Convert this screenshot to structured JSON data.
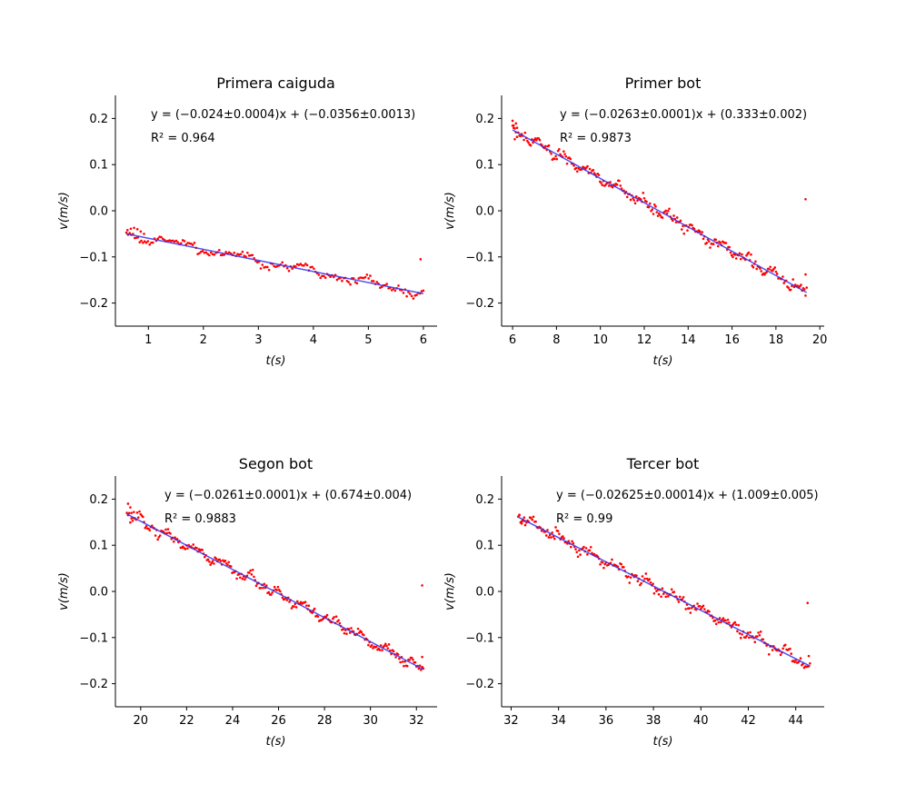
{
  "chart_data": [
    {
      "type": "scatter",
      "title": "Primera caiguda",
      "xlabel": "t(s)",
      "ylabel": "v(m/s)",
      "xlim": [
        0.4,
        6.25
      ],
      "ylim": [
        -0.25,
        0.25
      ],
      "xticks": [
        1,
        2,
        3,
        4,
        5,
        6
      ],
      "yticks": [
        -0.2,
        -0.1,
        0.0,
        0.1,
        0.2
      ],
      "grid": false,
      "fit": {
        "slope": -0.024,
        "intercept": -0.0356,
        "x_range": [
          0.6,
          6.0
        ],
        "color": "#3333ee"
      },
      "annotations": [
        "y = (−0.024±0.0004)x + (−0.0356±0.0013)",
        "R² = 0.964"
      ],
      "point_color": "#ff0000",
      "n_points": 180,
      "noise": 0.004,
      "outliers": [
        [
          5.95,
          -0.105
        ]
      ],
      "start_points": [
        [
          0.62,
          -0.042
        ],
        [
          0.68,
          -0.039
        ],
        [
          0.74,
          -0.037
        ],
        [
          0.8,
          -0.04
        ],
        [
          0.86,
          -0.045
        ],
        [
          0.92,
          -0.05
        ]
      ]
    },
    {
      "type": "scatter",
      "title": "Primer bot",
      "xlabel": "t(s)",
      "ylabel": "v(m/s)",
      "xlim": [
        5.5,
        20.2
      ],
      "ylim": [
        -0.25,
        0.25
      ],
      "xticks": [
        6,
        8,
        10,
        12,
        14,
        16,
        18,
        20
      ],
      "yticks": [
        -0.2,
        -0.1,
        0.0,
        0.1,
        0.2
      ],
      "grid": false,
      "fit": {
        "slope": -0.0263,
        "intercept": 0.333,
        "x_range": [
          6.0,
          19.4
        ],
        "color": "#3333ee"
      },
      "annotations": [
        "y = (−0.0263±0.0001)x + (0.333±0.002)",
        "R² = 0.9873"
      ],
      "point_color": "#ff0000",
      "n_points": 260,
      "noise": 0.005,
      "outliers": [
        [
          19.35,
          0.025
        ],
        [
          19.35,
          -0.138
        ]
      ],
      "start_points": [
        [
          6.0,
          0.195
        ],
        [
          6.05,
          0.185
        ],
        [
          6.1,
          0.155
        ],
        [
          6.15,
          0.17
        ],
        [
          6.2,
          0.16
        ]
      ]
    },
    {
      "type": "scatter",
      "title": "Segon bot",
      "xlabel": "t(s)",
      "ylabel": "v(m/s)",
      "xlim": [
        18.9,
        32.9
      ],
      "ylim": [
        -0.25,
        0.25
      ],
      "xticks": [
        20,
        22,
        24,
        26,
        28,
        30,
        32
      ],
      "yticks": [
        -0.2,
        -0.1,
        0.0,
        0.1,
        0.2
      ],
      "grid": false,
      "fit": {
        "slope": -0.0261,
        "intercept": 0.674,
        "x_range": [
          19.4,
          32.3
        ],
        "color": "#3333ee"
      },
      "annotations": [
        "y = (−0.0261±0.0001)x + (0.674±0.004)",
        "R² = 0.9883"
      ],
      "point_color": "#ff0000",
      "n_points": 260,
      "noise": 0.005,
      "outliers": [
        [
          32.25,
          0.013
        ],
        [
          32.25,
          -0.142
        ]
      ],
      "start_points": [
        [
          19.45,
          0.19
        ],
        [
          19.55,
          0.182
        ],
        [
          19.6,
          0.17
        ],
        [
          19.7,
          0.172
        ]
      ]
    },
    {
      "type": "scatter",
      "title": "Tercer bot",
      "xlabel": "t(s)",
      "ylabel": "v(m/s)",
      "xlim": [
        31.6,
        45.2
      ],
      "ylim": [
        -0.25,
        0.25
      ],
      "xticks": [
        32,
        34,
        36,
        38,
        40,
        42,
        44
      ],
      "yticks": [
        -0.2,
        -0.1,
        0.0,
        0.1,
        0.2
      ],
      "grid": false,
      "fit": {
        "slope": -0.02625,
        "intercept": 1.009,
        "x_range": [
          32.3,
          44.6
        ],
        "color": "#3333ee"
      },
      "annotations": [
        "y = (−0.02625±0.00014)x + (1.009±0.005)",
        "R² = 0.99"
      ],
      "point_color": "#ff0000",
      "n_points": 250,
      "noise": 0.005,
      "outliers": [
        [
          44.5,
          -0.025
        ],
        [
          44.55,
          -0.14
        ]
      ],
      "start_points": [
        [
          32.35,
          0.165
        ],
        [
          32.45,
          0.152
        ],
        [
          32.55,
          0.16
        ]
      ]
    }
  ]
}
